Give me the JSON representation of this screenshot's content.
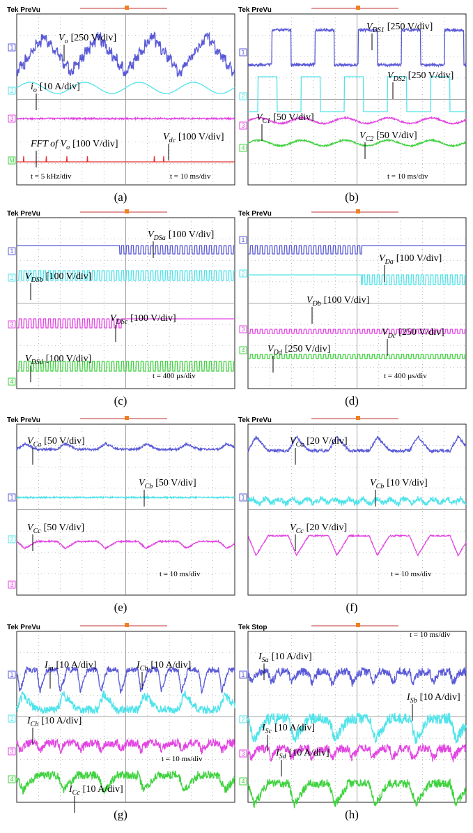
{
  "panels": [
    {
      "header": "Tek PreVu",
      "caption": "(a)",
      "channels": [
        "1",
        "2",
        "3",
        "M"
      ],
      "labels": [
        {
          "sym": "V",
          "sub": "o",
          "scale": "[250 V/div]"
        },
        {
          "sym": "i",
          "sub": "o",
          "scale": "[10 A/div]"
        },
        {
          "sym": "V",
          "sub": "dc",
          "scale": "[100 V/div]"
        },
        {
          "pre": "FFT of ",
          "sym": "V",
          "sub": "o",
          "scale": "[100 V/div]"
        }
      ],
      "notes": [
        "t = 5 kHz/div",
        "t = 10 ms/div"
      ]
    },
    {
      "header": "Tek PreVu",
      "caption": "(b)",
      "channels": [
        "1",
        "2",
        "3",
        "4"
      ],
      "labels": [
        {
          "sym": "V",
          "sub": "DS1",
          "scale": "[250 V/div]"
        },
        {
          "sym": "V",
          "sub": "DS2",
          "scale": "[250 V/div]"
        },
        {
          "sym": "V",
          "sub": "C1",
          "scale": "[50 V/div]"
        },
        {
          "sym": "V",
          "sub": "C2",
          "scale": "[50 V/div]"
        }
      ],
      "notes": [
        "t = 10 ms/div"
      ]
    },
    {
      "header": "Tek PreVu",
      "caption": "(c)",
      "channels": [
        "1",
        "2",
        "3",
        "4"
      ],
      "labels": [
        {
          "sym": "V",
          "sub": "DSa",
          "scale": "[100 V/div]"
        },
        {
          "sym": "V",
          "sub": "DSb",
          "scale": "[100 V/div]"
        },
        {
          "sym": "V",
          "sub": "DSc",
          "scale": "[100 V/div]"
        },
        {
          "sym": "V",
          "sub": "DSd",
          "scale": "[100 V/div]"
        }
      ],
      "notes": [
        "t =  400 µs/div"
      ]
    },
    {
      "header": "Tek PreVu",
      "caption": "(d)",
      "channels": [
        "1",
        "2",
        "3",
        "4"
      ],
      "labels": [
        {
          "sym": "V",
          "sub": "Da",
          "scale": "[100 V/div]"
        },
        {
          "sym": "V",
          "sub": "Db",
          "scale": "[100 V/div]"
        },
        {
          "sym": "V",
          "sub": "Dc",
          "scale": "[250 V/div]"
        },
        {
          "sym": "V",
          "sub": "Dd",
          "scale": "[250 V/div]"
        }
      ],
      "notes": [
        "t =  400 µs/div"
      ]
    },
    {
      "header": "Tek PreVu",
      "caption": "(e)",
      "channels": [
        "1",
        "2",
        "3"
      ],
      "labels": [
        {
          "sym": "V",
          "sub": "Ca",
          "scale": "[50 V/div]"
        },
        {
          "sym": "V",
          "sub": "Cb",
          "scale": "[50 V/div]"
        },
        {
          "sym": "V",
          "sub": "Cc",
          "scale": "[50 V/div]"
        }
      ],
      "notes": [
        "t = 10 ms/div"
      ]
    },
    {
      "header": "Tek PreVu",
      "caption": "(f)",
      "channels": [
        "1"
      ],
      "labels": [
        {
          "sym": "V",
          "sub": "Ca",
          "scale": "[20 V/div]"
        },
        {
          "sym": "V",
          "sub": "Cb",
          "scale": "[10 V/div]"
        },
        {
          "sym": "V",
          "sub": "Cc",
          "scale": "[20 V/div]"
        }
      ],
      "notes": [
        "t = 10 ms/div"
      ]
    },
    {
      "header": "Tek PreVu",
      "caption": "(g)",
      "channels": [
        "1",
        "2",
        "3",
        "4"
      ],
      "labels": [
        {
          "sym": "I",
          "sub": "in",
          "scale": "[10 A/div]"
        },
        {
          "sym": "I",
          "sub": "Cb",
          "scale": "[10 A/div]"
        },
        {
          "sym": "I",
          "sub": "Cb",
          "scale": "[10 A/div]"
        },
        {
          "sym": "I",
          "sub": "Cc",
          "scale": "[10 A/div]"
        }
      ],
      "notes": [
        "t = 10 ms/div"
      ]
    },
    {
      "header": "Tek Stop",
      "caption": "(h)",
      "channels": [
        "1",
        "2",
        "3",
        "4"
      ],
      "labels": [
        {
          "sym": "I",
          "sub": "Sa",
          "scale": "[10 A/div]"
        },
        {
          "sym": "I",
          "sub": "Sb",
          "scale": "[10 A/div]"
        },
        {
          "sym": "I",
          "sub": "Sc",
          "scale": "[10 A/div]"
        },
        {
          "sym": "I",
          "sub": "Sd",
          "scale": "[10 A/div]"
        }
      ],
      "notes": [
        "t = 10 ms/div"
      ]
    }
  ]
}
